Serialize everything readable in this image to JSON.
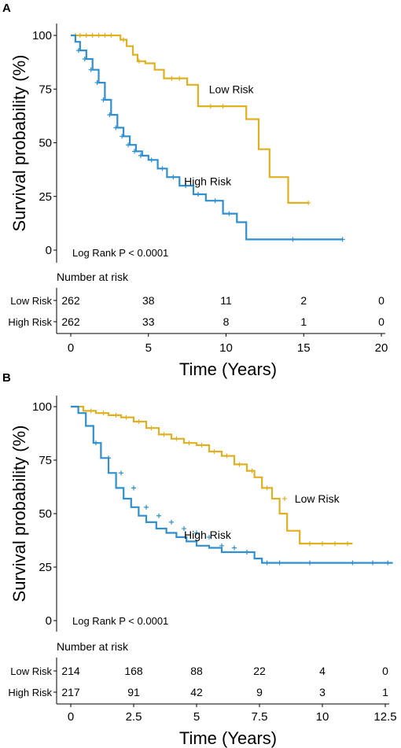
{
  "chart_data": [
    {
      "panel": "A",
      "type": "line",
      "ylabel": "Survival probability (%)",
      "xlabel": "Time  (Years)",
      "ylim": [
        0,
        100
      ],
      "xlim": [
        0,
        20
      ],
      "yticks": [
        0,
        25,
        50,
        75,
        100
      ],
      "xticks": [
        0,
        5,
        10,
        15,
        20
      ],
      "xtick_labels": [
        "0",
        "5",
        "10",
        "15",
        "20"
      ],
      "annotation": "Log Rank P < 0.0001",
      "risk_table_title": "Number at risk",
      "series": [
        {
          "name": "Low Risk",
          "color": "#E0B020",
          "x": [
            0,
            2.5,
            3.2,
            3.6,
            4.0,
            4.3,
            4.8,
            5.4,
            6.0,
            7.2,
            7.5,
            8.2,
            10.4,
            11.3,
            12.1,
            12.8,
            14.0,
            15.3
          ],
          "y": [
            100,
            100,
            98,
            95,
            91,
            88,
            87,
            84,
            80,
            80,
            77,
            67,
            67,
            61,
            47,
            34,
            22,
            22
          ],
          "censor_x": [
            0.3,
            0.6,
            1.0,
            1.4,
            1.8,
            2.2,
            2.6,
            3.4,
            4.4,
            6.5,
            7.0,
            9.0,
            9.8,
            15.3
          ],
          "censor_y": [
            100,
            100,
            100,
            100,
            100,
            100,
            100,
            98,
            88,
            80,
            80,
            67,
            67,
            22
          ],
          "label_x": 8.9,
          "label_y": 75
        },
        {
          "name": "High Risk",
          "color": "#2F8FCF",
          "x": [
            0,
            0.3,
            0.6,
            1.0,
            1.4,
            1.8,
            2.2,
            2.6,
            3.0,
            3.4,
            3.8,
            4.2,
            4.6,
            5.0,
            5.6,
            6.2,
            7.0,
            7.9,
            8.7,
            9.8,
            10.7,
            11.3,
            14.3,
            17.5
          ],
          "y": [
            100,
            97,
            93,
            89,
            84,
            78,
            70,
            63,
            57,
            53,
            49,
            46,
            44,
            42,
            38,
            34,
            30,
            26,
            23,
            17,
            13,
            5,
            5,
            5
          ],
          "censor_x": [
            0.5,
            0.9,
            1.3,
            1.7,
            2.1,
            2.5,
            2.9,
            3.3,
            3.7,
            4.1,
            4.5,
            5.2,
            5.9,
            6.6,
            7.4,
            8.2,
            9.3,
            10.2,
            14.3,
            17.5
          ],
          "censor_y": [
            93,
            89,
            84,
            78,
            70,
            63,
            57,
            53,
            49,
            46,
            44,
            42,
            38,
            34,
            30,
            26,
            23,
            17,
            5,
            5
          ],
          "label_x": 7.3,
          "label_y": 32
        }
      ],
      "risk_table": [
        {
          "label": "Low Risk",
          "values": [
            "262",
            "38",
            "11",
            "2",
            "0"
          ]
        },
        {
          "label": "High Risk",
          "values": [
            "262",
            "33",
            "8",
            "1",
            "0"
          ]
        }
      ]
    },
    {
      "panel": "B",
      "type": "line",
      "ylabel": "Survival probability (%)",
      "xlabel": "Time  (Years)",
      "ylim": [
        0,
        100
      ],
      "xlim": [
        0,
        12.5
      ],
      "yticks": [
        0,
        25,
        50,
        75,
        100
      ],
      "xticks": [
        0,
        2.5,
        5,
        7.5,
        10,
        12.5
      ],
      "xtick_labels": [
        "0",
        "2.5",
        "5",
        "7.5",
        "10",
        "12.5"
      ],
      "annotation": "Log Rank P < 0.0001",
      "risk_table_title": "Number at risk",
      "series": [
        {
          "name": "Low Risk",
          "color": "#E0B020",
          "x": [
            0,
            0.5,
            1.0,
            1.5,
            2.0,
            2.5,
            3.0,
            3.5,
            4.0,
            4.5,
            5.0,
            5.5,
            6.0,
            6.5,
            7.0,
            7.3,
            7.6,
            8.0,
            8.3,
            8.6,
            9.1,
            11.2
          ],
          "y": [
            100,
            98,
            97,
            96,
            95,
            93,
            90,
            87,
            85,
            83,
            82,
            79,
            77,
            73,
            70,
            67,
            62,
            57,
            50,
            42,
            36,
            36
          ],
          "censor_x": [
            0.8,
            1.3,
            1.8,
            2.2,
            2.7,
            3.2,
            3.7,
            4.2,
            4.7,
            5.2,
            5.7,
            6.2,
            6.7,
            7.2,
            7.8,
            8.5,
            9.5,
            10.0,
            10.5,
            11.0
          ],
          "censor_y": [
            98,
            97,
            96,
            95,
            93,
            90,
            87,
            85,
            83,
            82,
            79,
            77,
            73,
            70,
            62,
            57,
            36,
            36,
            36,
            36
          ],
          "label_x": 8.9,
          "label_y": 57
        },
        {
          "name": "High Risk",
          "color": "#2F8FCF",
          "x": [
            0,
            0.3,
            0.6,
            0.9,
            1.2,
            1.5,
            1.8,
            2.1,
            2.4,
            2.7,
            3.0,
            3.4,
            3.8,
            4.2,
            4.6,
            5.0,
            5.5,
            6.0,
            7.3,
            7.6,
            12.8
          ],
          "y": [
            100,
            97,
            91,
            83,
            76,
            69,
            62,
            57,
            53,
            49,
            46,
            43,
            41,
            39,
            37,
            35,
            34,
            32,
            29,
            27,
            27
          ],
          "censor_x": [
            1.0,
            1.5,
            2.0,
            2.5,
            3.0,
            3.5,
            4.0,
            4.5,
            5.0,
            5.5,
            6.0,
            6.5,
            7.0,
            7.8,
            8.3,
            9.5,
            11.2,
            12.0,
            12.6
          ],
          "censor_y": [
            83,
            76,
            69,
            62,
            53,
            49,
            46,
            43,
            41,
            39,
            35,
            34,
            32,
            27,
            27,
            27,
            27,
            27,
            27
          ],
          "label_x": 4.5,
          "label_y": 40
        }
      ],
      "risk_table": [
        {
          "label": "Low Risk",
          "values": [
            "214",
            "168",
            "88",
            "22",
            "4",
            "0"
          ]
        },
        {
          "label": "High Risk",
          "values": [
            "217",
            "91",
            "42",
            "9",
            "3",
            "1"
          ]
        }
      ]
    }
  ]
}
